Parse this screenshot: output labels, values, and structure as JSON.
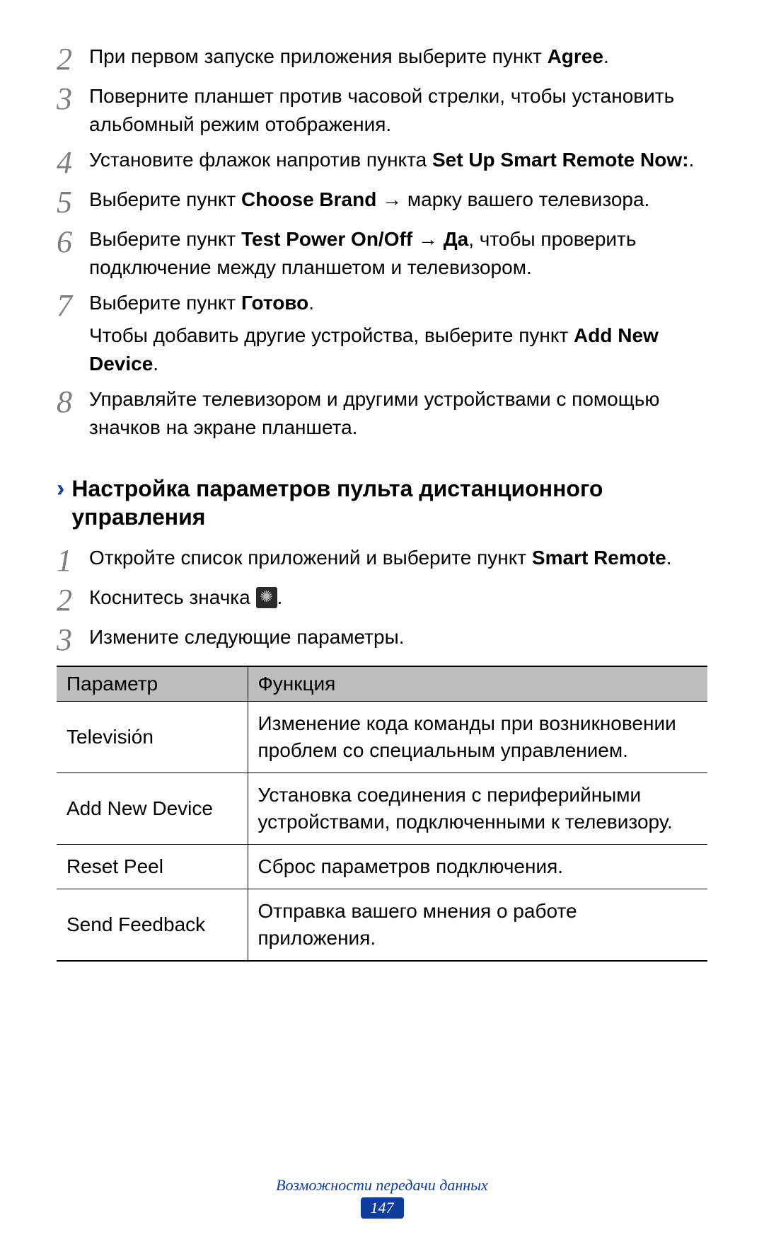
{
  "steps_a": [
    {
      "num": "2",
      "parts": [
        {
          "t": "При первом запуске приложения выберите пункт "
        },
        {
          "t": "Agree",
          "b": true
        },
        {
          "t": "."
        }
      ]
    },
    {
      "num": "3",
      "parts": [
        {
          "t": "Поверните планшет против часовой стрелки, чтобы установить альбомный режим отображения."
        }
      ]
    },
    {
      "num": "4",
      "parts": [
        {
          "t": "Установите флажок напротив пункта "
        },
        {
          "t": "Set Up Smart Remote Now:",
          "b": true
        },
        {
          "t": "."
        }
      ]
    },
    {
      "num": "5",
      "parts": [
        {
          "t": "Выберите пункт "
        },
        {
          "t": "Choose Brand",
          "b": true
        },
        {
          "t": " → марку вашего телевизора."
        }
      ]
    },
    {
      "num": "6",
      "parts": [
        {
          "t": "Выберите пункт "
        },
        {
          "t": "Test Power On/Off",
          "b": true
        },
        {
          "t": " → "
        },
        {
          "t": "Да",
          "b": true
        },
        {
          "t": ", чтобы проверить подключение между планшетом и телевизором."
        }
      ]
    },
    {
      "num": "7",
      "parts": [
        {
          "t": "Выберите пункт "
        },
        {
          "t": "Готово",
          "b": true
        },
        {
          "t": "."
        }
      ],
      "sub_parts": [
        {
          "t": "Чтобы добавить другие устройства, выберите пункт "
        },
        {
          "t": "Add New Device",
          "b": true
        },
        {
          "t": "."
        }
      ]
    },
    {
      "num": "8",
      "parts": [
        {
          "t": "Управляйте телевизором и другими устройствами с помощью значков на экране планшета."
        }
      ]
    }
  ],
  "section_heading": "Настройка параметров пульта дистанционного управления",
  "steps_b": [
    {
      "num": "1",
      "parts": [
        {
          "t": "Откройте список приложений и выберите пункт "
        },
        {
          "t": "Smart Remote",
          "b": true
        },
        {
          "t": "."
        }
      ]
    },
    {
      "num": "2",
      "parts": [
        {
          "t": "Коснитесь значка "
        },
        {
          "icon": "gear"
        },
        {
          "t": "."
        }
      ]
    },
    {
      "num": "3",
      "parts": [
        {
          "t": "Измените следующие параметры."
        }
      ]
    }
  ],
  "table": {
    "header": {
      "param": "Параметр",
      "func": "Функция"
    },
    "rows": [
      {
        "param": "Televisión",
        "func": "Изменение кода команды при возникновении проблем со специальным управлением."
      },
      {
        "param": "Add New Device",
        "func": "Установка соединения с периферийными устройствами, подключенными к телевизору."
      },
      {
        "param": "Reset Peel",
        "func": "Сброс параметров подключения."
      },
      {
        "param": "Send Feedback",
        "func": "Отправка вашего мнения о работе приложения."
      }
    ]
  },
  "footer": {
    "title": "Возможности передачи данных",
    "page": "147"
  },
  "colors": {
    "accent": "#0f3d9b",
    "step_num": "#7d7d7d",
    "table_header_bg": "#bcbcbc",
    "text": "#000000",
    "bg": "#ffffff"
  }
}
